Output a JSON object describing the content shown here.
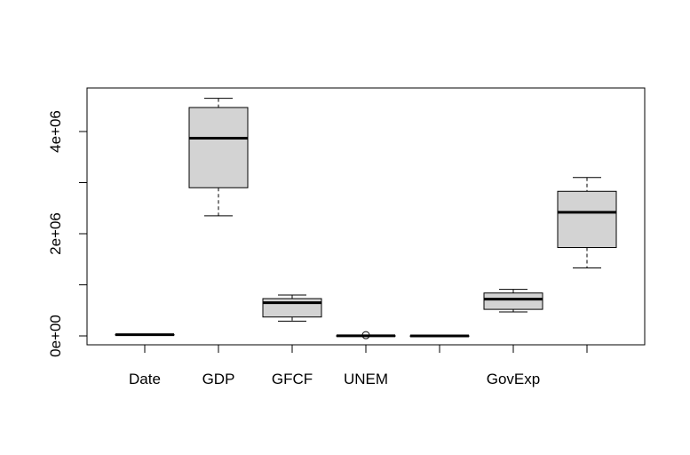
{
  "chart_data": {
    "type": "boxplot",
    "categories": [
      "Date",
      "GDP",
      "GFCF",
      "UNEM",
      "",
      "GovExp",
      ""
    ],
    "series": [
      {
        "category": "Date",
        "whisker_low": 20000,
        "q1": 22000,
        "median": 24000,
        "q3": 26000,
        "whisker_high": 28000,
        "outliers": []
      },
      {
        "category": "GDP",
        "whisker_low": 2350000,
        "q1": 2900000,
        "median": 3870000,
        "q3": 4470000,
        "whisker_high": 4650000,
        "outliers": []
      },
      {
        "category": "GFCF",
        "whisker_low": 290000,
        "q1": 370000,
        "median": 650000,
        "q3": 730000,
        "whisker_high": 800000,
        "outliers": []
      },
      {
        "category": "UNEM",
        "whisker_low": 0,
        "q1": 0,
        "median": 2000,
        "q3": 4000,
        "whisker_high": 8000,
        "outliers": [
          15000
        ]
      },
      {
        "category": "",
        "whisker_low": 0,
        "q1": 500,
        "median": 1000,
        "q3": 1500,
        "whisker_high": 2000,
        "outliers": []
      },
      {
        "category": "GovExp",
        "whisker_low": 470000,
        "q1": 520000,
        "median": 720000,
        "q3": 840000,
        "whisker_high": 910000,
        "outliers": []
      },
      {
        "category": "",
        "whisker_low": 1330000,
        "q1": 1730000,
        "median": 2420000,
        "q3": 2830000,
        "whisker_high": 3100000,
        "outliers": []
      }
    ],
    "yticks": [
      0,
      1000000,
      2000000,
      3000000,
      4000000
    ],
    "ytick_labels": [
      "0e+00",
      "",
      "2e+06",
      "",
      "4e+06"
    ],
    "ylim": [
      -200000,
      4800000
    ],
    "title": "",
    "xlabel": "",
    "ylabel": "",
    "colors": {
      "box_fill": "#d3d3d3",
      "line": "#000000",
      "background": "#ffffff"
    }
  }
}
